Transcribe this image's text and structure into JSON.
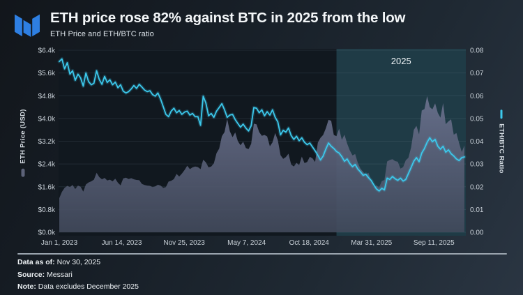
{
  "header": {
    "title": "ETH price rose 82% against BTC in 2025 from the low",
    "subtitle": "ETH Price and ETH/BTC ratio",
    "logo": "messari-logo",
    "logo_color": "#2e7fe2"
  },
  "chart_data": {
    "type": "area+line",
    "title": "ETH price rose 82% against BTC in 2025 from the low",
    "sampling": "weekly points, Jan 1 2023 - Nov 30 2025",
    "x_axis": {
      "total_days": 1064,
      "ticks": [
        {
          "label": "Jan 1, 2023",
          "day": 0
        },
        {
          "label": "Jun 14, 2023",
          "day": 164
        },
        {
          "label": "Nov 25, 2023",
          "day": 328
        },
        {
          "label": "May 7, 2024",
          "day": 492
        },
        {
          "label": "Oct 18, 2024",
          "day": 656
        },
        {
          "label": "Mar 31, 2025",
          "day": 820
        },
        {
          "label": "Sep 11, 2025",
          "day": 984
        }
      ]
    },
    "left_axis": {
      "title": "ETH Price (USD)",
      "min": 0,
      "max": 6400,
      "tick_labels": [
        "$0.0k",
        "$0.8k",
        "$1.6k",
        "$2.4k",
        "$3.2k",
        "$4.0k",
        "$4.8k",
        "$5.6k",
        "$6.4k"
      ]
    },
    "right_axis": {
      "title": "ETH/BTC Ratio",
      "min": 0,
      "max": 0.08,
      "tick_labels": [
        "0.00",
        "0.01",
        "0.02",
        "0.03",
        "0.04",
        "0.05",
        "0.06",
        "0.07",
        "0.08"
      ]
    },
    "highlight": {
      "label": "2025",
      "start_day": 728,
      "color": "#1f3b46"
    },
    "colors": {
      "plot_bg": "#11181f",
      "grid": "rgba(150,170,185,0.13)",
      "area_top": "#6d7390",
      "area_bottom": "#424a5c",
      "line": "#3cc9ec"
    },
    "series": [
      {
        "name": "ETH Price (USD)",
        "axis": "left",
        "type": "area",
        "values": [
          1200,
          1420,
          1560,
          1630,
          1590,
          1660,
          1520,
          1640,
          1600,
          1430,
          1680,
          1750,
          1790,
          1850,
          2090,
          1940,
          1860,
          1910,
          1820,
          1850,
          1790,
          1880,
          1740,
          1650,
          1890,
          1920,
          1870,
          1900,
          1860,
          1840,
          1830,
          1700,
          1660,
          1640,
          1630,
          1590,
          1610,
          1670,
          1640,
          1560,
          1590,
          1780,
          1810,
          1870,
          2050,
          1960,
          2060,
          2190,
          2340,
          2220,
          2280,
          2310,
          2290,
          2220,
          2550,
          2460,
          2280,
          2310,
          2420,
          2780,
          2940,
          3380,
          3520,
          3980,
          3550,
          3340,
          3510,
          3200,
          3060,
          3180,
          2960,
          2920,
          3110,
          3820,
          3790,
          3520,
          3390,
          3420,
          3370,
          3020,
          3160,
          3490,
          3240,
          2710,
          2580,
          2640,
          2760,
          2380,
          2310,
          2440,
          2360,
          2660,
          2430,
          2470,
          2650,
          2600,
          2470,
          3150,
          3320,
          3420,
          3650,
          3950,
          3920,
          3420,
          3380,
          3640,
          3250,
          3430,
          3120,
          2880,
          2700,
          2750,
          2440,
          2240,
          2120,
          2020,
          2090,
          1830,
          1590,
          1650,
          1580,
          1800,
          1840,
          2490,
          2540,
          2570,
          2500,
          2480,
          2240,
          2290,
          2530,
          2620,
          2990,
          3600,
          3740,
          3440,
          4280,
          4330,
          4790,
          4400,
          4320,
          4530,
          4200,
          4030,
          4540,
          3800,
          3900,
          3970,
          3430,
          3490,
          3130,
          2820,
          3050
        ]
      },
      {
        "name": "ETH/BTC ratio",
        "axis": "right",
        "type": "line",
        "values": [
          0.075,
          0.0762,
          0.0718,
          0.0745,
          0.0695,
          0.071,
          0.0668,
          0.0695,
          0.0678,
          0.0642,
          0.07,
          0.0662,
          0.0648,
          0.0655,
          0.071,
          0.0672,
          0.065,
          0.0685,
          0.0658,
          0.067,
          0.0648,
          0.066,
          0.0635,
          0.0648,
          0.062,
          0.0612,
          0.0618,
          0.063,
          0.0645,
          0.0632,
          0.065,
          0.0638,
          0.0625,
          0.0618,
          0.0622,
          0.0605,
          0.0598,
          0.0612,
          0.0585,
          0.0552,
          0.0518,
          0.0508,
          0.0532,
          0.0545,
          0.0525,
          0.0535,
          0.0518,
          0.0528,
          0.0532,
          0.0515,
          0.0522,
          0.0508,
          0.0508,
          0.047,
          0.0598,
          0.0568,
          0.0512,
          0.0522,
          0.0505,
          0.0532,
          0.0548,
          0.0565,
          0.0538,
          0.0505,
          0.0515,
          0.0518,
          0.0495,
          0.0478,
          0.0462,
          0.0475,
          0.0458,
          0.0445,
          0.0468,
          0.0548,
          0.0545,
          0.0525,
          0.0538,
          0.0512,
          0.053,
          0.0515,
          0.0538,
          0.0505,
          0.0485,
          0.0428,
          0.0448,
          0.044,
          0.0458,
          0.0425,
          0.0408,
          0.0422,
          0.0402,
          0.0415,
          0.0395,
          0.0385,
          0.0392,
          0.0375,
          0.0358,
          0.0338,
          0.0318,
          0.0335,
          0.0365,
          0.0392,
          0.0378,
          0.0368,
          0.0355,
          0.0348,
          0.0332,
          0.0312,
          0.0322,
          0.0302,
          0.0288,
          0.0298,
          0.0278,
          0.0265,
          0.025,
          0.0255,
          0.024,
          0.0228,
          0.0208,
          0.019,
          0.0181,
          0.0193,
          0.0186,
          0.0238,
          0.0232,
          0.0245,
          0.0235,
          0.0228,
          0.0238,
          0.0225,
          0.0232,
          0.0258,
          0.0285,
          0.0312,
          0.0328,
          0.031,
          0.0348,
          0.0368,
          0.0395,
          0.0415,
          0.0398,
          0.0408,
          0.0378,
          0.0365,
          0.0378,
          0.0352,
          0.0362,
          0.0345,
          0.0335,
          0.0322,
          0.0315,
          0.0328,
          0.0331
        ]
      }
    ]
  },
  "footer": {
    "items": [
      {
        "label": "Data as of:",
        "value": "Nov 30, 2025"
      },
      {
        "label": "Source:",
        "value": "Messari"
      },
      {
        "label": "Note:",
        "value": "Data excludes December 2025"
      }
    ]
  }
}
